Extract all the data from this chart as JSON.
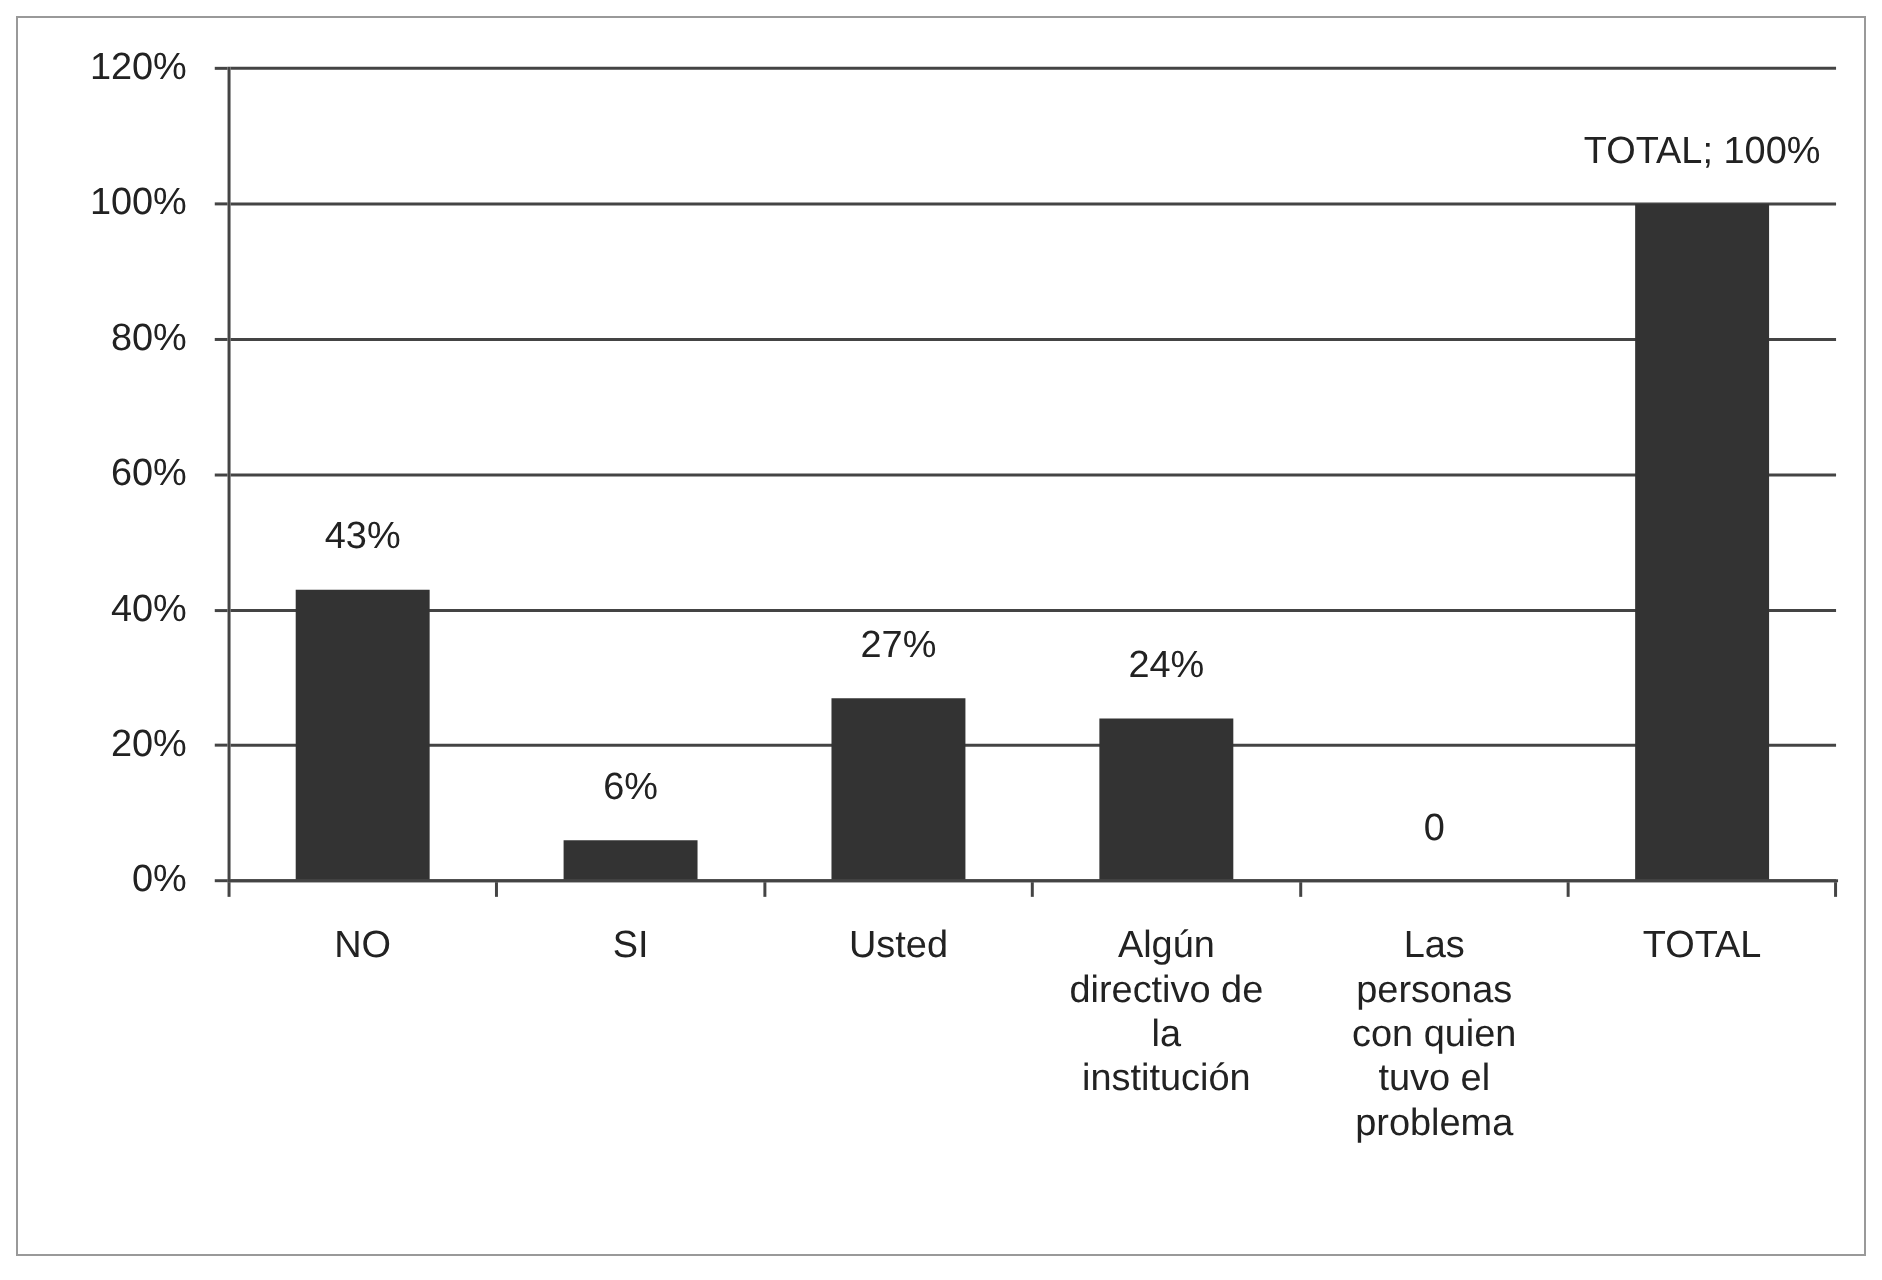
{
  "chart_data": {
    "type": "bar",
    "categories": [
      "NO",
      "SI",
      "Usted",
      "Algún directivo de la institución",
      "Las personas con quien tuvo el problema",
      "TOTAL"
    ],
    "values": [
      43,
      6,
      27,
      24,
      0,
      100
    ],
    "color": "#333333",
    "value_labels": [
      "43%",
      "6%",
      "27%",
      "24%",
      "0",
      "TOTAL; 100%"
    ],
    "ylim": [
      0,
      120
    ],
    "yticks": [
      {
        "value": 0,
        "label": "0%"
      },
      {
        "value": 20,
        "label": "20%"
      },
      {
        "value": 40,
        "label": "40%"
      },
      {
        "value": 60,
        "label": "60%"
      },
      {
        "value": 80,
        "label": "80%"
      },
      {
        "value": 100,
        "label": "100%"
      },
      {
        "value": 120,
        "label": "120%"
      }
    ],
    "grid": "y"
  }
}
